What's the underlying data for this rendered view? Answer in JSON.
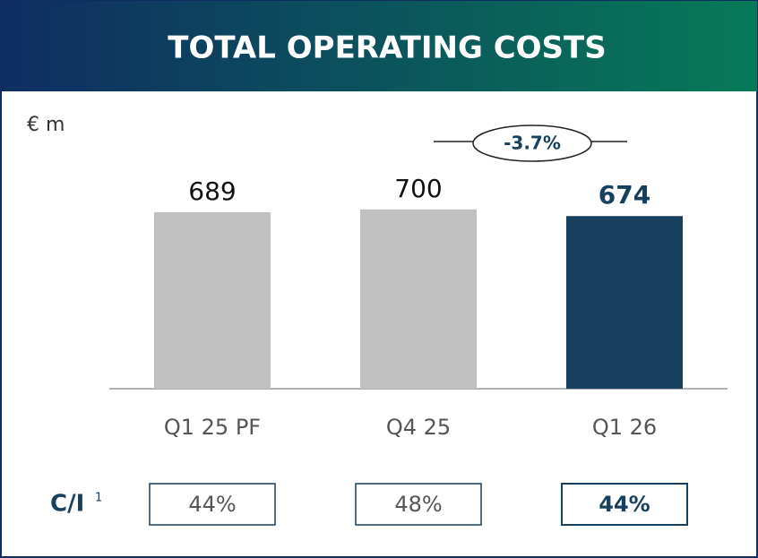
{
  "chart_data": {
    "type": "bar",
    "title": "TOTAL OPERATING COSTS",
    "unit": "€ m",
    "categories": [
      "Q1 25 PF",
      "Q4 25",
      "Q1 26"
    ],
    "values": [
      689,
      700,
      674
    ],
    "colors": [
      "#c0c0c0",
      "#c0c0c0",
      "#17405e"
    ],
    "ylim": [
      0,
      1000
    ],
    "annotation": "-3.7%",
    "ratio": {
      "label": "C/I",
      "footnote": "1",
      "values": [
        44,
        48,
        44
      ],
      "value_labels": [
        "44%",
        "48%",
        "44%"
      ]
    }
  }
}
